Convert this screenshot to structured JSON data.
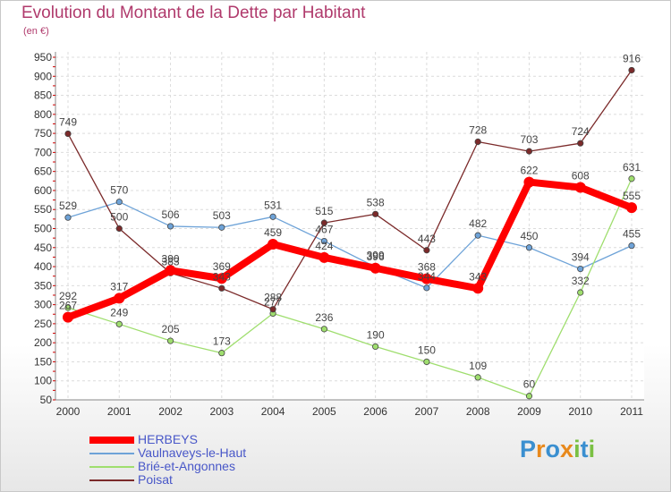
{
  "title": "Evolution du Montant de la Dette par Habitant",
  "subtitle": "(en €)",
  "logo": {
    "letters": [
      "P",
      "r",
      "o",
      "x",
      "i",
      "t",
      "i"
    ],
    "colors": [
      "#3a8fd0",
      "#e8891c",
      "#3a8fd0",
      "#e8891c",
      "#7ac043",
      "#3a8fd0",
      "#7ac043"
    ]
  },
  "chart_data": {
    "type": "line",
    "categories": [
      "2000",
      "2001",
      "2002",
      "2003",
      "2004",
      "2005",
      "2006",
      "2007",
      "2008",
      "2009",
      "2010",
      "2011"
    ],
    "ylim": [
      50,
      950
    ],
    "yticks": [
      50,
      100,
      150,
      200,
      250,
      300,
      350,
      400,
      450,
      500,
      550,
      600,
      650,
      700,
      750,
      800,
      850,
      900,
      950
    ],
    "grid": true,
    "legend_position": "bottom-left",
    "series": [
      {
        "name": "HERBEYS",
        "color": "#ff0000",
        "values": [
          267,
          317,
          390,
          369,
          459,
          424,
          396,
          368,
          343,
          622,
          608,
          555
        ]
      },
      {
        "name": "Vaulnaveys-le-Haut",
        "color": "#6ea3d8",
        "values": [
          529,
          570,
          506,
          503,
          531,
          467,
          399,
          344,
          482,
          450,
          394,
          455
        ]
      },
      {
        "name": "Brié-et-Angonnes",
        "color": "#9fde6e",
        "values": [
          292,
          249,
          205,
          173,
          277,
          236,
          190,
          150,
          109,
          60,
          332,
          631
        ]
      },
      {
        "name": "Poisat",
        "color": "#7b2a2a",
        "values": [
          749,
          500,
          383,
          343,
          288,
          515,
          538,
          443,
          728,
          703,
          724,
          916
        ]
      }
    ]
  }
}
